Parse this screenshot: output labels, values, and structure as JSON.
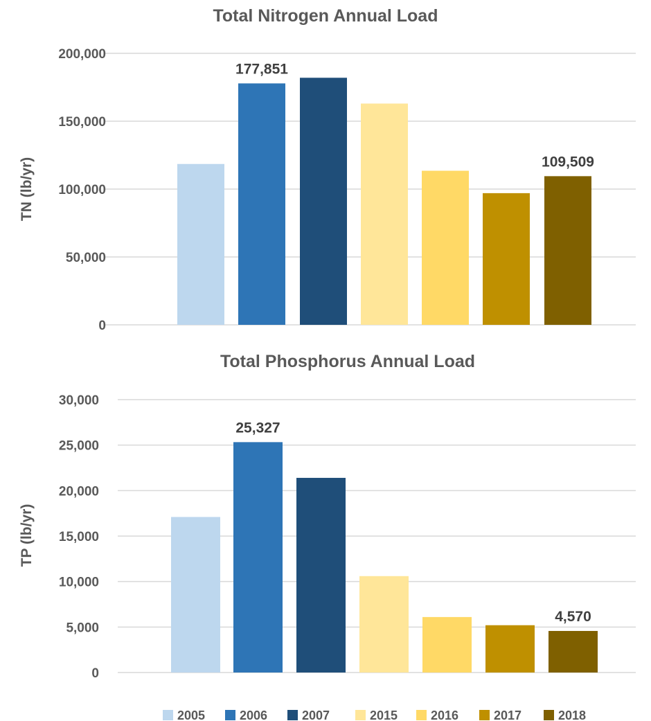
{
  "chart_data": [
    {
      "type": "bar",
      "title": "Total Nitrogen Annual Load",
      "ylabel": "TN (lb/yr)",
      "xlabel": "",
      "ylim": [
        0,
        200000
      ],
      "yticks": [
        "0",
        "50,000",
        "100,000",
        "150,000",
        "200,000"
      ],
      "ytick_values": [
        0,
        50000,
        100000,
        150000,
        200000
      ],
      "grid": true,
      "series": [
        {
          "name": "2005",
          "value": 118500,
          "color": "#BDD7EE"
        },
        {
          "name": "2006",
          "value": 177851,
          "color": "#2E75B6"
        },
        {
          "name": "2007",
          "value": 182000,
          "color": "#1F4E79"
        },
        {
          "name": "2015",
          "value": 163000,
          "color": "#FFE699"
        },
        {
          "name": "2016",
          "value": 113500,
          "color": "#FFD966"
        },
        {
          "name": "2017",
          "value": 97000,
          "color": "#BF9000"
        },
        {
          "name": "2018",
          "value": 109509,
          "color": "#7F6000"
        }
      ],
      "data_labels": [
        {
          "series": "2006",
          "text": "177,851"
        },
        {
          "series": "2018",
          "text": "109,509"
        }
      ]
    },
    {
      "type": "bar",
      "title": "Total Phosphorus Annual Load",
      "ylabel": "TP (lb/yr)",
      "xlabel": "",
      "ylim": [
        0,
        30000
      ],
      "yticks": [
        "0",
        "5,000",
        "10,000",
        "15,000",
        "20,000",
        "25,000",
        "30,000"
      ],
      "ytick_values": [
        0,
        5000,
        10000,
        15000,
        20000,
        25000,
        30000
      ],
      "grid": true,
      "series": [
        {
          "name": "2005",
          "value": 17100,
          "color": "#BDD7EE"
        },
        {
          "name": "2006",
          "value": 25327,
          "color": "#2E75B6"
        },
        {
          "name": "2007",
          "value": 21400,
          "color": "#1F4E79"
        },
        {
          "name": "2015",
          "value": 10600,
          "color": "#FFE699"
        },
        {
          "name": "2016",
          "value": 6100,
          "color": "#FFD966"
        },
        {
          "name": "2017",
          "value": 5200,
          "color": "#BF9000"
        },
        {
          "name": "2018",
          "value": 4570,
          "color": "#7F6000"
        }
      ],
      "data_labels": [
        {
          "series": "2006",
          "text": "25,327"
        },
        {
          "series": "2018",
          "text": "4,570"
        }
      ]
    }
  ],
  "legend": {
    "placement": "bottom",
    "items": [
      {
        "label": "2005",
        "color": "#BDD7EE"
      },
      {
        "label": "2006",
        "color": "#2E75B6"
      },
      {
        "label": "2007",
        "color": "#1F4E79"
      },
      {
        "label": "2015",
        "color": "#FFE699"
      },
      {
        "label": "2016",
        "color": "#FFD966"
      },
      {
        "label": "2017",
        "color": "#BF9000"
      },
      {
        "label": "2018",
        "color": "#7F6000"
      }
    ]
  }
}
